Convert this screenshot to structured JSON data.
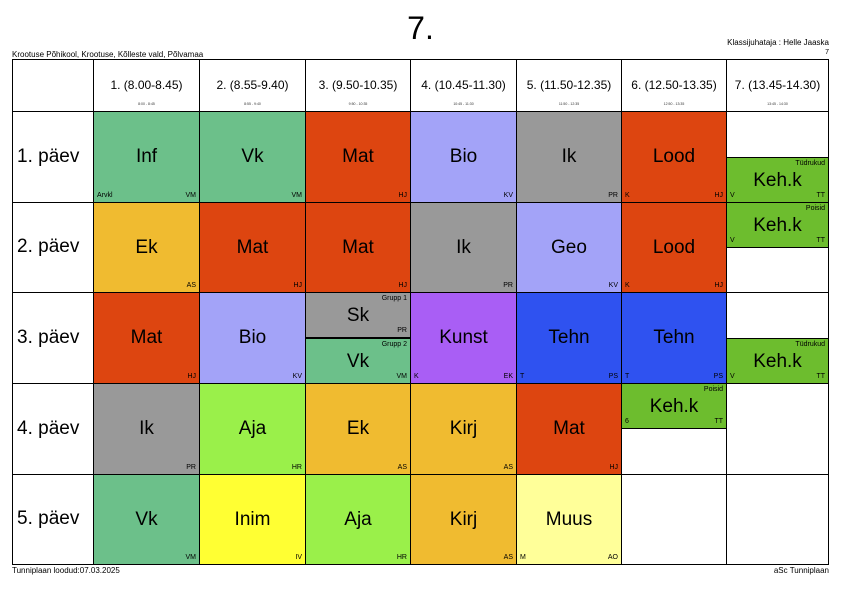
{
  "header": {
    "title": "7.",
    "school": "Krootuse Põhikool, Krootuse, Kõlleste vald, Põlvamaa",
    "teacher": "Klassijuhataja : Helle Jaaska",
    "teacher_code": "7"
  },
  "periods": [
    {
      "label": "1. (8.00-8.45)",
      "sub": "8:00 - 8:45"
    },
    {
      "label": "2. (8.55-9.40)",
      "sub": "8:55 - 9:40"
    },
    {
      "label": "3. (9.50-10.35)",
      "sub": "9:50 - 10:35"
    },
    {
      "label": "4. (10.45-11.30)",
      "sub": "10:45 - 11:30"
    },
    {
      "label": "5. (11.50-12.35)",
      "sub": "11:50 - 12:35"
    },
    {
      "label": "6. (12.50-13.35)",
      "sub": "12:50 - 13:35"
    },
    {
      "label": "7. (13.45-14.30)",
      "sub": "13:45 - 14:30"
    }
  ],
  "days": [
    "1. päev",
    "2. päev",
    "3. päev",
    "4. päev",
    "5. päev"
  ],
  "lessons": [
    {
      "day": 0,
      "period": 0,
      "subject": "Inf",
      "teacher": "VM",
      "room": "Arvkl",
      "group": "",
      "color": "#6cc08a",
      "part": "full"
    },
    {
      "day": 0,
      "period": 1,
      "subject": "Vk",
      "teacher": "VM",
      "room": "",
      "group": "",
      "color": "#6cc08a",
      "part": "full"
    },
    {
      "day": 0,
      "period": 2,
      "subject": "Mat",
      "teacher": "HJ",
      "room": "",
      "group": "",
      "color": "#dd4510",
      "part": "full"
    },
    {
      "day": 0,
      "period": 3,
      "subject": "Bio",
      "teacher": "KV",
      "room": "",
      "group": "",
      "color": "#a3a3f8",
      "part": "full"
    },
    {
      "day": 0,
      "period": 4,
      "subject": "Ik",
      "teacher": "PR",
      "room": "",
      "group": "",
      "color": "#999999",
      "part": "full"
    },
    {
      "day": 0,
      "period": 5,
      "subject": "Lood",
      "teacher": "HJ",
      "room": "K",
      "group": "",
      "color": "#dd4510",
      "part": "full"
    },
    {
      "day": 0,
      "period": 6,
      "subject": "Keh.k",
      "teacher": "TT",
      "room": "V",
      "group": "Tüdrukud",
      "color": "#6dbd2e",
      "part": "bottom"
    },
    {
      "day": 1,
      "period": 0,
      "subject": "Ek",
      "teacher": "AS",
      "room": "",
      "group": "",
      "color": "#f0bb30",
      "part": "full"
    },
    {
      "day": 1,
      "period": 1,
      "subject": "Mat",
      "teacher": "HJ",
      "room": "",
      "group": "",
      "color": "#dd4510",
      "part": "full"
    },
    {
      "day": 1,
      "period": 2,
      "subject": "Mat",
      "teacher": "HJ",
      "room": "",
      "group": "",
      "color": "#dd4510",
      "part": "full"
    },
    {
      "day": 1,
      "period": 3,
      "subject": "Ik",
      "teacher": "PR",
      "room": "",
      "group": "",
      "color": "#999999",
      "part": "full"
    },
    {
      "day": 1,
      "period": 4,
      "subject": "Geo",
      "teacher": "KV",
      "room": "",
      "group": "",
      "color": "#a3a3f8",
      "part": "full"
    },
    {
      "day": 1,
      "period": 5,
      "subject": "Lood",
      "teacher": "HJ",
      "room": "K",
      "group": "",
      "color": "#dd4510",
      "part": "full"
    },
    {
      "day": 1,
      "period": 6,
      "subject": "Keh.k",
      "teacher": "TT",
      "room": "V",
      "group": "Poisid",
      "color": "#6dbd2e",
      "part": "top"
    },
    {
      "day": 2,
      "period": 0,
      "subject": "Mat",
      "teacher": "HJ",
      "room": "",
      "group": "",
      "color": "#dd4510",
      "part": "full"
    },
    {
      "day": 2,
      "period": 1,
      "subject": "Bio",
      "teacher": "KV",
      "room": "",
      "group": "",
      "color": "#a3a3f8",
      "part": "full"
    },
    {
      "day": 2,
      "period": 2,
      "subject": "Sk",
      "teacher": "PR",
      "room": "",
      "group": "Grupp 1",
      "color": "#999999",
      "part": "top"
    },
    {
      "day": 2,
      "period": 2,
      "subject": "Vk",
      "teacher": "VM",
      "room": "",
      "group": "Grupp 2",
      "color": "#6cc08a",
      "part": "bottom"
    },
    {
      "day": 2,
      "period": 3,
      "subject": "Kunst",
      "teacher": "EK",
      "room": "K",
      "group": "",
      "color": "#a95ef5",
      "part": "full"
    },
    {
      "day": 2,
      "period": 4,
      "subject": "Tehn",
      "teacher": "PS",
      "room": "T",
      "group": "",
      "color": "#2f52f0",
      "part": "full"
    },
    {
      "day": 2,
      "period": 5,
      "subject": "Tehn",
      "teacher": "PS",
      "room": "T",
      "group": "",
      "color": "#2f52f0",
      "part": "full"
    },
    {
      "day": 2,
      "period": 6,
      "subject": "Keh.k",
      "teacher": "TT",
      "room": "V",
      "group": "Tüdrukud",
      "color": "#6dbd2e",
      "part": "bottom"
    },
    {
      "day": 3,
      "period": 0,
      "subject": "Ik",
      "teacher": "PR",
      "room": "",
      "group": "",
      "color": "#999999",
      "part": "full"
    },
    {
      "day": 3,
      "period": 1,
      "subject": "Aja",
      "teacher": "HR",
      "room": "",
      "group": "",
      "color": "#9af04a",
      "part": "full"
    },
    {
      "day": 3,
      "period": 2,
      "subject": "Ek",
      "teacher": "AS",
      "room": "",
      "group": "",
      "color": "#f0bb30",
      "part": "full"
    },
    {
      "day": 3,
      "period": 3,
      "subject": "Kirj",
      "teacher": "AS",
      "room": "",
      "group": "",
      "color": "#f0bb30",
      "part": "full"
    },
    {
      "day": 3,
      "period": 4,
      "subject": "Mat",
      "teacher": "HJ",
      "room": "",
      "group": "",
      "color": "#dd4510",
      "part": "full"
    },
    {
      "day": 3,
      "period": 5,
      "subject": "Keh.k",
      "teacher": "TT",
      "room": "6",
      "group": "Poisid",
      "color": "#6dbd2e",
      "part": "top"
    },
    {
      "day": 4,
      "period": 0,
      "subject": "Vk",
      "teacher": "VM",
      "room": "",
      "group": "",
      "color": "#6cc08a",
      "part": "full"
    },
    {
      "day": 4,
      "period": 1,
      "subject": "Inim",
      "teacher": "IV",
      "room": "",
      "group": "",
      "color": "#ffff33",
      "part": "full"
    },
    {
      "day": 4,
      "period": 2,
      "subject": "Aja",
      "teacher": "HR",
      "room": "",
      "group": "",
      "color": "#9af04a",
      "part": "full"
    },
    {
      "day": 4,
      "period": 3,
      "subject": "Kirj",
      "teacher": "AS",
      "room": "",
      "group": "",
      "color": "#f0bb30",
      "part": "full"
    },
    {
      "day": 4,
      "period": 4,
      "subject": "Muus",
      "teacher": "AO",
      "room": "M",
      "group": "",
      "color": "#ffff99",
      "part": "full"
    }
  ],
  "footer": {
    "left": "Tunniplaan loodud:07.03.2025",
    "right": "aSc Tunniplaan"
  }
}
